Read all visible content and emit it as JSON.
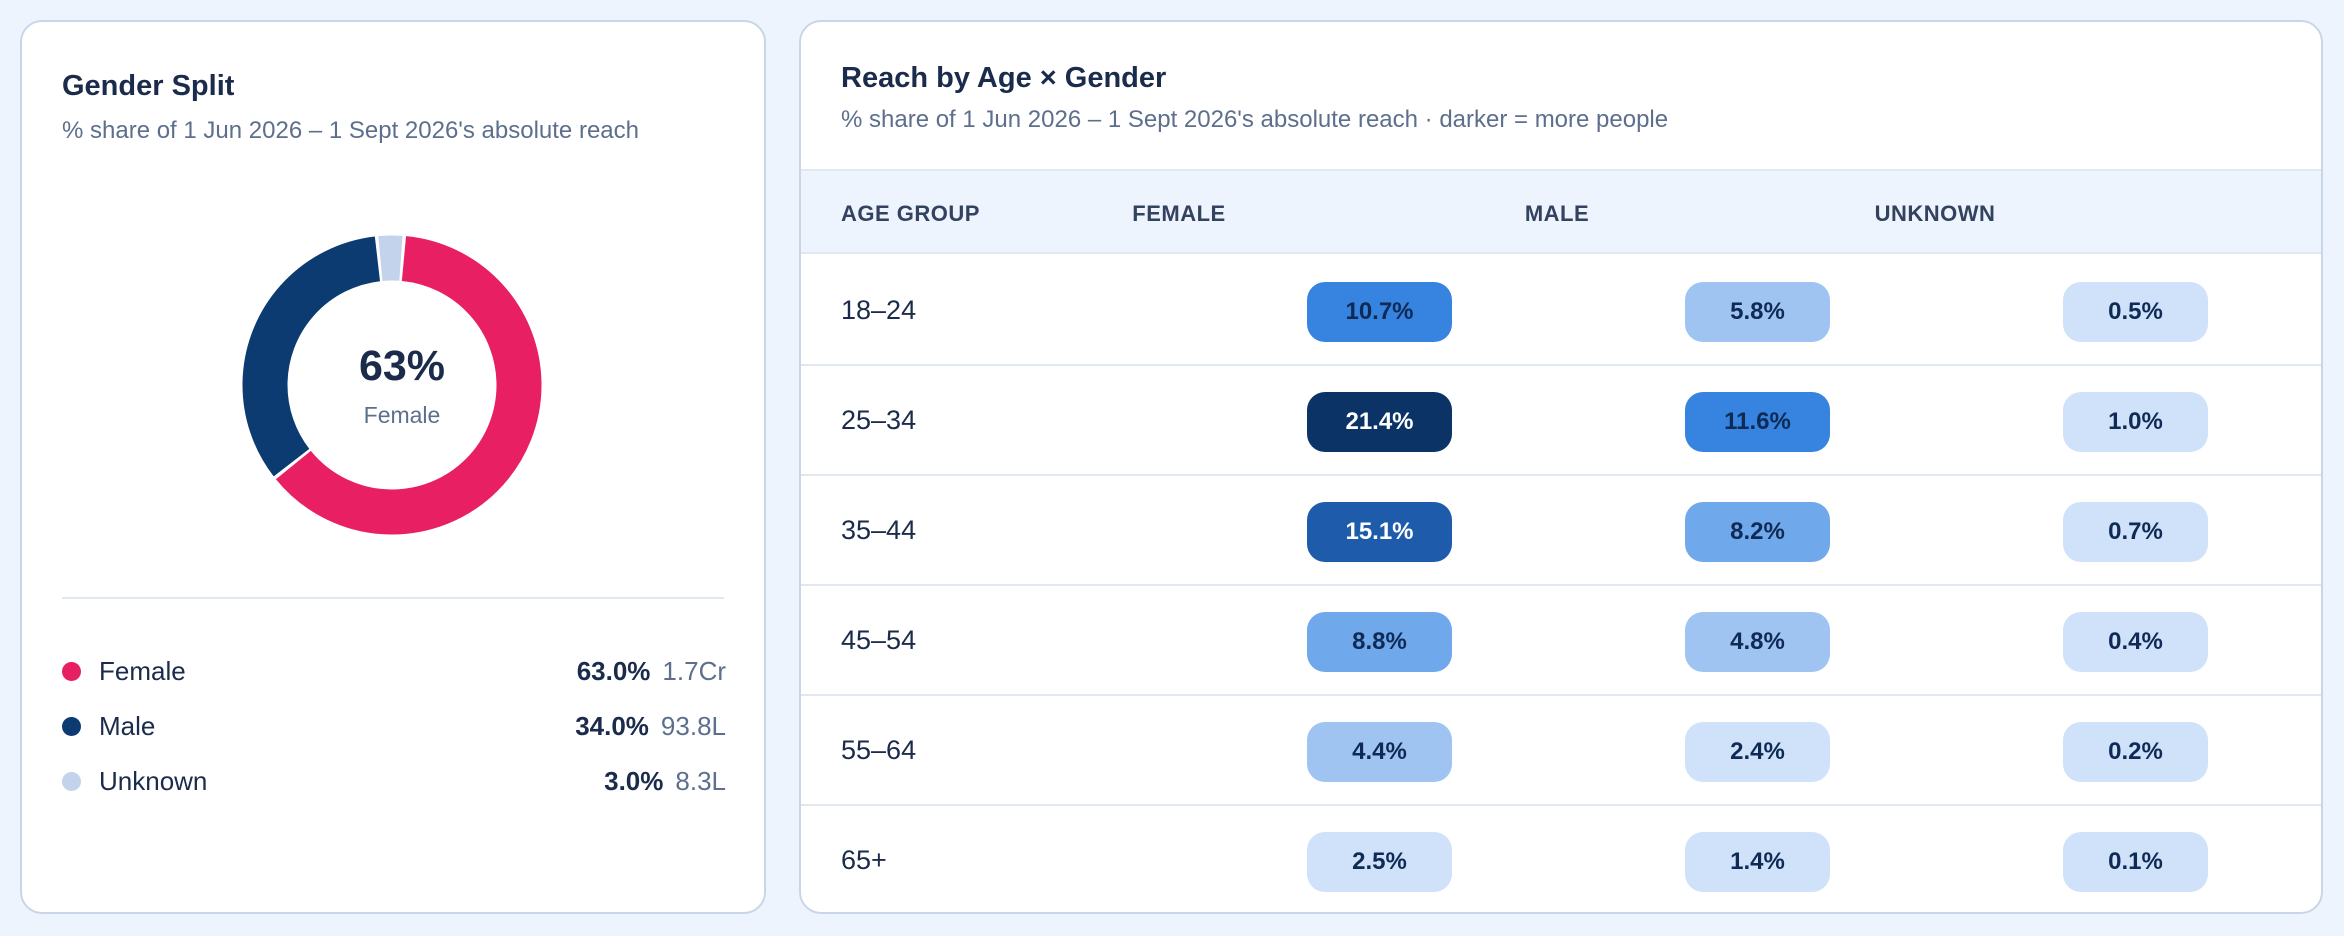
{
  "gender_split": {
    "title": "Gender Split",
    "subtitle": "% share of 1 Jun 2026 – 1 Sept 2026's absolute reach",
    "center_value": "63%",
    "center_label": "Female",
    "legend": [
      {
        "name": "Female",
        "pct": "63.0%",
        "abs": "1.7Cr",
        "share": 63.0,
        "color": "#e81f63"
      },
      {
        "name": "Male",
        "pct": "34.0%",
        "abs": "93.8L",
        "share": 34.0,
        "color": "#0b3b70"
      },
      {
        "name": "Unknown",
        "pct": "3.0%",
        "abs": "8.3L",
        "share": 3.0,
        "color": "#c3d3ec"
      }
    ]
  },
  "reach_table": {
    "title": "Reach by Age × Gender",
    "subtitle": "% share of 1 Jun 2026 – 1 Sept 2026's absolute reach · darker = more people",
    "headers": [
      "AGE GROUP",
      "FEMALE",
      "MALE",
      "UNKNOWN"
    ],
    "rows": [
      {
        "age": "18–24",
        "female": "10.7%",
        "male": "5.8%",
        "unknown": "0.5%"
      },
      {
        "age": "25–34",
        "female": "21.4%",
        "male": "11.6%",
        "unknown": "1.0%"
      },
      {
        "age": "35–44",
        "female": "15.1%",
        "male": "8.2%",
        "unknown": "0.7%"
      },
      {
        "age": "45–54",
        "female": "8.8%",
        "male": "4.8%",
        "unknown": "0.4%"
      },
      {
        "age": "55–64",
        "female": "4.4%",
        "male": "2.4%",
        "unknown": "0.2%"
      },
      {
        "age": "65+",
        "female": "2.5%",
        "male": "1.4%",
        "unknown": "0.1%"
      }
    ]
  },
  "colors": {
    "heat_darkest": "#0b3366",
    "heat_dark": "#1f5bab",
    "heat_mid": "#3683e0",
    "heat_light": "#6fa8eb",
    "heat_lighter": "#a0c4f2",
    "heat_lightest": "#cfe2f9"
  }
}
